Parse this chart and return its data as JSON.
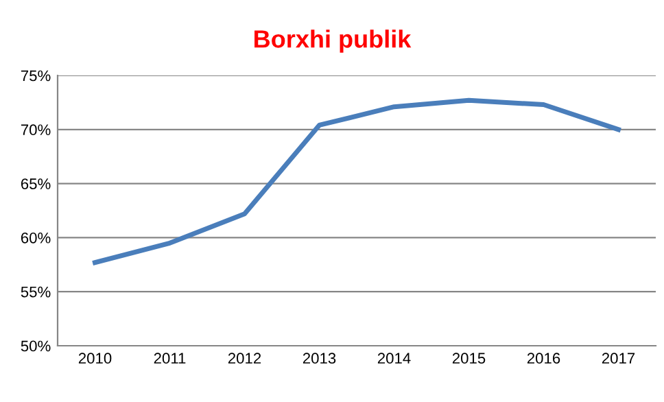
{
  "chart_data": {
    "type": "line",
    "title": "Borxhi publik",
    "categories": [
      "2010",
      "2011",
      "2012",
      "2013",
      "2014",
      "2015",
      "2016",
      "2017"
    ],
    "series": [
      {
        "color": "#4a7ebb",
        "values": [
          57.7,
          59.5,
          62.2,
          70.4,
          72.1,
          72.7,
          72.3,
          70.0
        ]
      }
    ],
    "ylim": [
      50,
      75
    ],
    "yticks": [
      {
        "value": 50,
        "label": "50%"
      },
      {
        "value": 55,
        "label": "55%"
      },
      {
        "value": 60,
        "label": "60%"
      },
      {
        "value": 65,
        "label": "65%"
      },
      {
        "value": 70,
        "label": "70%"
      },
      {
        "value": 75,
        "label": "75%"
      }
    ],
    "grid": "y",
    "marker": "none",
    "line_style": "solid"
  }
}
